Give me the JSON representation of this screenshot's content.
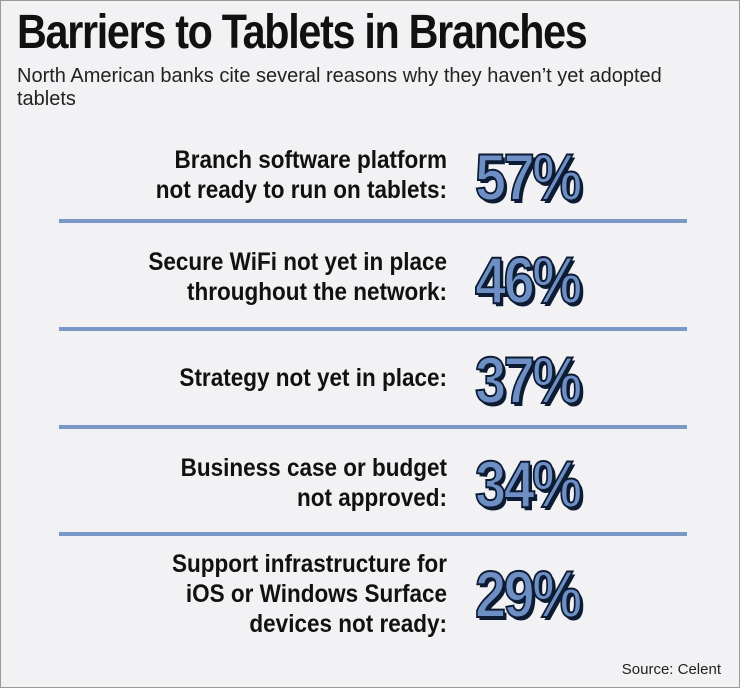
{
  "header": {
    "title": "Barriers to Tablets in Branches",
    "subtitle": "North American banks cite several reasons why they haven’t yet adopted tablets"
  },
  "colors": {
    "accent": "#6d8fc4",
    "divider": "#7a98c6",
    "background": "#f2f2f4"
  },
  "rows": [
    {
      "label_lines": [
        "Branch software platform",
        "not ready to run on tablets:"
      ],
      "value": "57%"
    },
    {
      "label_lines": [
        "Secure WiFi not yet in place",
        "throughout the network:"
      ],
      "value": "46%"
    },
    {
      "label_lines": [
        "Strategy not yet in place:"
      ],
      "value": "37%"
    },
    {
      "label_lines": [
        "Business case or budget",
        "not approved:"
      ],
      "value": "34%"
    },
    {
      "label_lines": [
        "Support infrastructure for",
        "iOS or Windows Surface",
        "devices not ready:"
      ],
      "value": "29%"
    }
  ],
  "source": "Source: Celent",
  "chart_data": {
    "type": "table",
    "title": "Barriers to Tablets in Branches",
    "subtitle": "North American banks cite several reasons why they haven’t yet adopted tablets",
    "categories": [
      "Branch software platform not ready to run on tablets",
      "Secure WiFi not yet in place throughout the network",
      "Strategy not yet in place",
      "Business case or budget not approved",
      "Support infrastructure for iOS or Windows Surface devices not ready"
    ],
    "values": [
      57,
      46,
      37,
      34,
      29
    ],
    "unit": "%"
  }
}
